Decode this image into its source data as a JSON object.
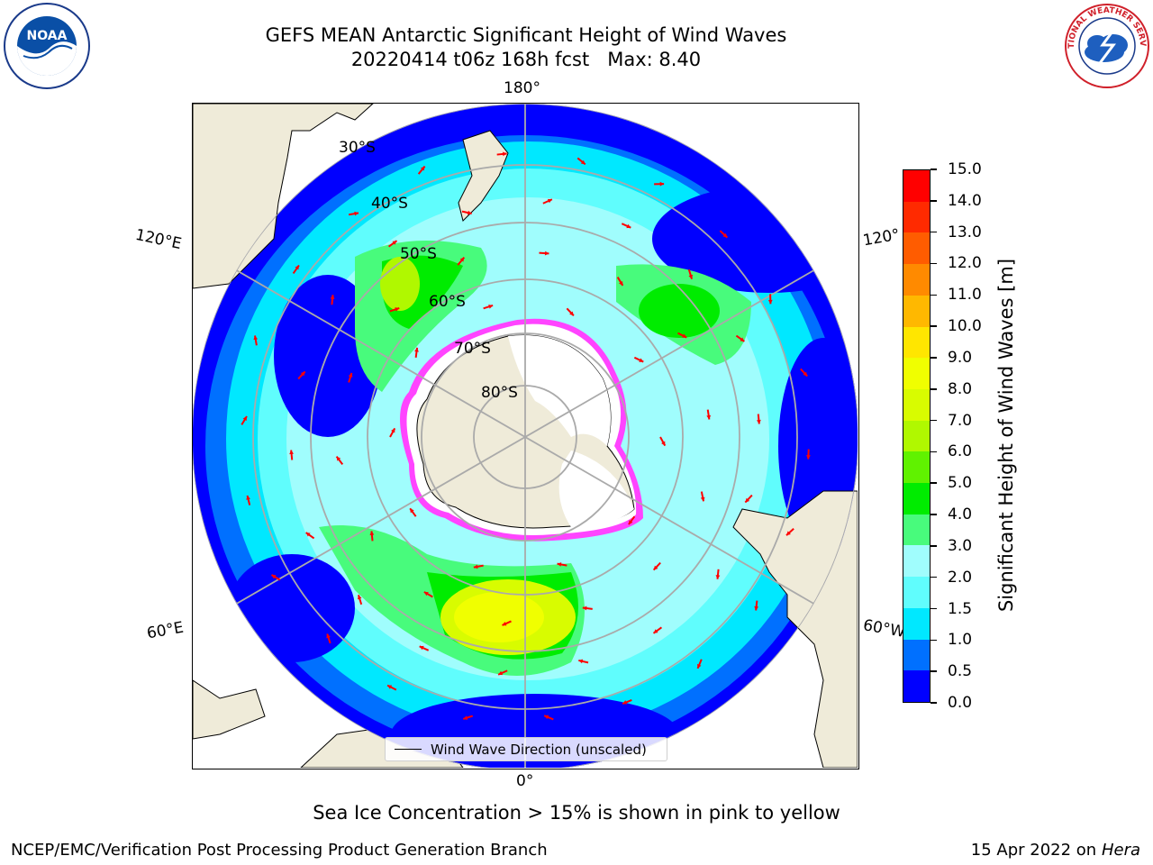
{
  "header": {
    "title_line1": "GEFS MEAN Antarctic Significant Height of Wind Waves",
    "title_line2": "20220414 t06z 168h fcst   Max: 8.40"
  },
  "map": {
    "lon_labels": {
      "top": "180°",
      "bottom": "0°",
      "left_upper": "120°E",
      "right_upper": "120°",
      "left_lower": "60°E",
      "right_lower": "60°W"
    },
    "lat_labels": [
      "30°S",
      "40°S",
      "50°S",
      "60°S",
      "70°S",
      "80°S"
    ],
    "legend_label": "Wind Wave Direction (unscaled)"
  },
  "colorbar": {
    "label": "Significant Height of Wind Waves [m]",
    "tick_labels": [
      "0.0",
      "0.5",
      "1.0",
      "1.5",
      "2.0",
      "3.0",
      "4.0",
      "5.0",
      "6.0",
      "7.0",
      "8.0",
      "9.0",
      "10.0",
      "11.0",
      "12.0",
      "13.0",
      "14.0",
      "15.0"
    ],
    "colors": [
      "#0000ff",
      "#0070ff",
      "#00e8ff",
      "#60fdfd",
      "#a0fdfd",
      "#48fb7c",
      "#00ec00",
      "#60f200",
      "#b0f800",
      "#d8fc00",
      "#f0ff00",
      "#ffe600",
      "#ffb800",
      "#ff8a00",
      "#ff5c00",
      "#ff2a00",
      "#ff0000"
    ]
  },
  "notes": {
    "sea_ice": "Sea Ice Concentration > 15% is shown in pink to yellow",
    "credit": "NCEP/EMC/Verification Post Processing Product Generation Branch",
    "date_prefix": "15 Apr 2022 on ",
    "date_machine": "Hera"
  },
  "logos": {
    "noaa_text": "NOAA",
    "noaa_ring": "NATIONAL OCEANIC AND ATMOSPHERIC ADMINISTRATION · U.S. DEPARTMENT OF COMMERCE",
    "nws_ring": "NATIONAL WEATHER SERVICE"
  }
}
